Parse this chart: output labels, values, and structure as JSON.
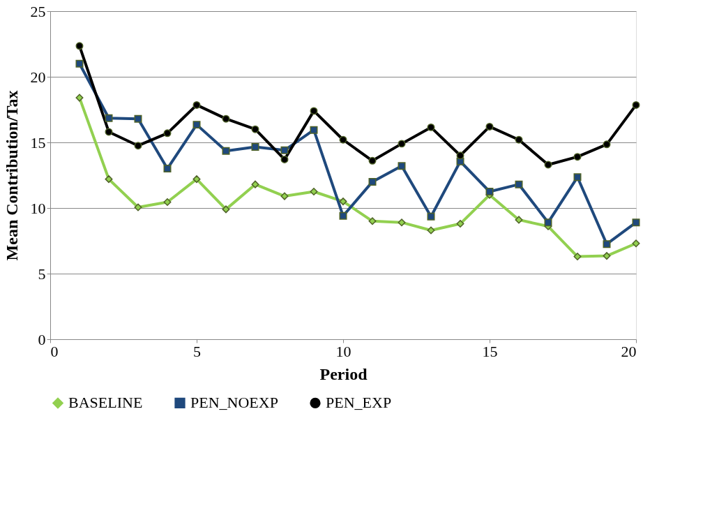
{
  "chart_data": {
    "type": "line",
    "xlabel": "Period",
    "ylabel": "Mean Contribution/Tax",
    "x": [
      1,
      2,
      3,
      4,
      5,
      6,
      7,
      8,
      9,
      10,
      11,
      12,
      13,
      14,
      15,
      16,
      17,
      18,
      19,
      20
    ],
    "xlim": [
      0,
      20
    ],
    "xticks": [
      0,
      5,
      10,
      15,
      20
    ],
    "ylim": [
      0,
      25
    ],
    "yticks": [
      0,
      5,
      10,
      15,
      20,
      25
    ],
    "grid": "y",
    "legend": "bottom",
    "line_style": "solid",
    "series": [
      {
        "name": "BASELINE",
        "color": "#92d050",
        "marker": "diamond",
        "values": [
          18.4,
          12.2,
          10.05,
          10.45,
          12.2,
          9.9,
          11.8,
          10.9,
          11.25,
          10.5,
          9.0,
          8.9,
          8.3,
          8.8,
          11.0,
          9.1,
          8.6,
          6.3,
          6.35,
          7.3
        ]
      },
      {
        "name": "PEN_NOEXP",
        "color": "#1f497d",
        "marker": "square",
        "values": [
          21.0,
          16.85,
          16.8,
          13.0,
          16.35,
          14.35,
          14.65,
          14.4,
          15.95,
          9.4,
          12.0,
          13.2,
          9.35,
          13.55,
          11.25,
          11.8,
          8.9,
          12.35,
          7.25,
          8.9
        ]
      },
      {
        "name": "PEN_EXP",
        "color": "#000000",
        "marker": "circle",
        "values": [
          22.35,
          15.8,
          14.75,
          15.7,
          17.85,
          16.8,
          16.0,
          13.7,
          17.4,
          15.2,
          13.6,
          14.9,
          16.15,
          14.0,
          16.2,
          15.2,
          13.3,
          13.9,
          14.85,
          17.85
        ]
      }
    ]
  }
}
